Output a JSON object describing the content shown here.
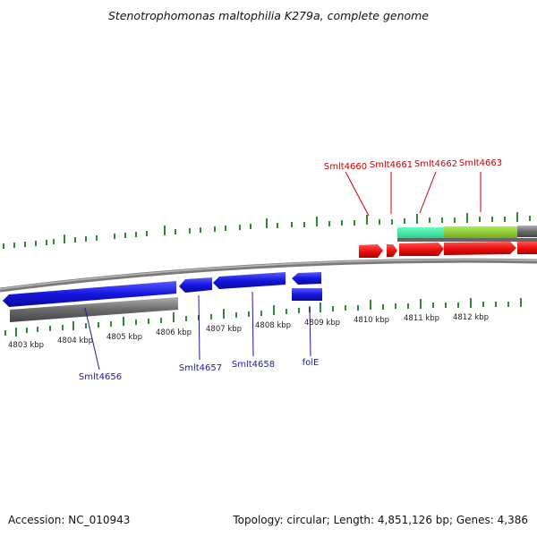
{
  "title": "Stenotrophomonas maltophilia K279a, complete genome",
  "footer": {
    "accession": "Accession: NC_010943",
    "topology": "Topology: circular; Length: 4,851,126 bp; Genes: 4,386"
  },
  "genome_map": {
    "ticks": [
      "4803 kbp",
      "4804 kbp",
      "4805 kbp",
      "4806 kbp",
      "4807 kbp",
      "4808 kbp",
      "4809 kbp",
      "4810 kbp",
      "4811 kbp",
      "4812 kbp"
    ],
    "genes_top": [
      "Smlt4660",
      "Smlt4661",
      "Smlt4662",
      "Smlt4663"
    ],
    "genes_bottom": [
      "Smlt4656",
      "Smlt4657",
      "Smlt4658",
      "folE"
    ]
  },
  "colors": {
    "forward_gene": "#ee1111",
    "reverse_gene": "#1111dd",
    "gene_label_forward": "#cc0000",
    "gene_label_reverse": "#1a1aa8",
    "tick": "#2e8b2e",
    "backbone": "#888888",
    "rna": "#33dd99",
    "highlight": "#88cc33"
  }
}
